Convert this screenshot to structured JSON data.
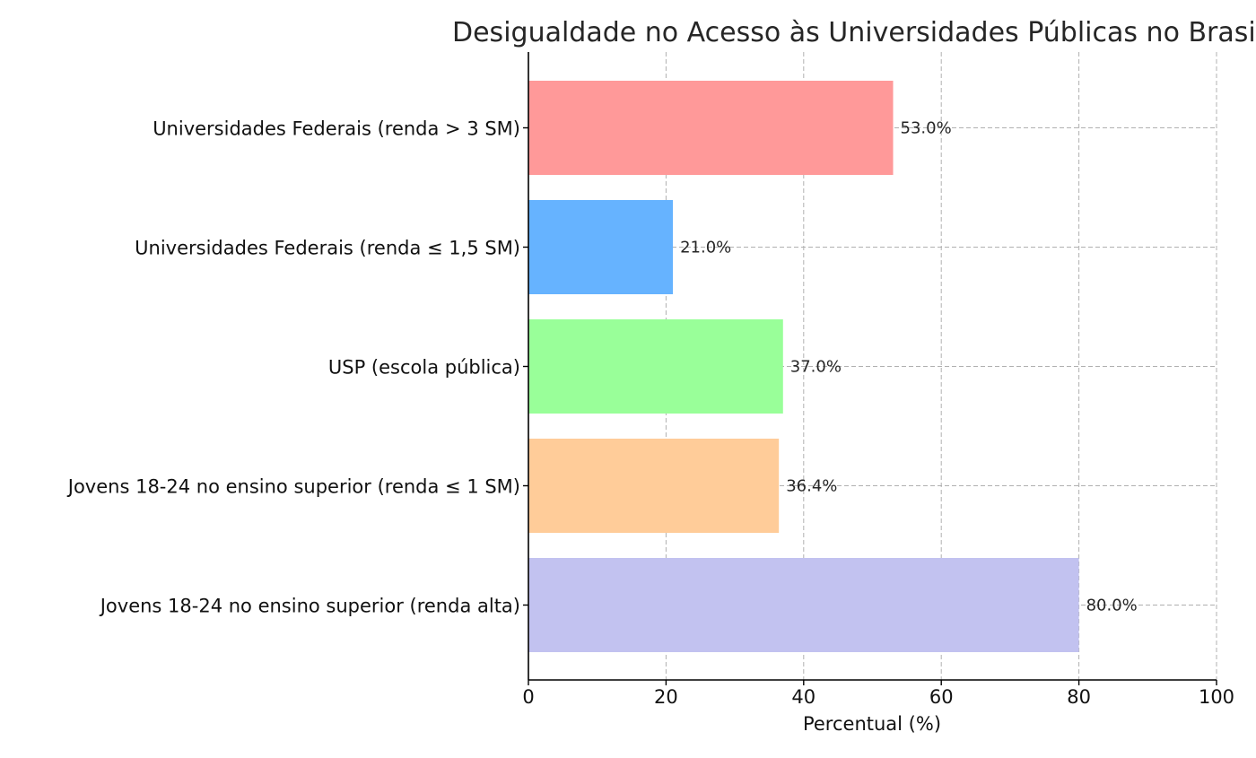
{
  "chart_data": {
    "type": "bar",
    "orientation": "horizontal",
    "title": "Desigualdade no Acesso às Universidades Públicas no Brasil",
    "xlabel": "Percentual (%)",
    "ylabel": "",
    "xlim": [
      0,
      100
    ],
    "xticks": [
      0,
      20,
      40,
      60,
      80,
      100
    ],
    "grid": true,
    "categories": [
      "Universidades Federais (renda > 3 SM)",
      "Universidades Federais (renda ≤ 1,5 SM)",
      "USP (escola pública)",
      "Jovens 18-24 no ensino superior (renda ≤ 1 SM)",
      "Jovens 18-24 no ensino superior (renda alta)"
    ],
    "values": [
      53.0,
      21.0,
      37.0,
      36.4,
      80.0
    ],
    "value_labels": [
      "53.0%",
      "21.0%",
      "37.0%",
      "36.4%",
      "80.0%"
    ],
    "colors": [
      "#ff9999",
      "#66b3ff",
      "#99ff99",
      "#ffcc99",
      "#c2c2f0"
    ]
  }
}
